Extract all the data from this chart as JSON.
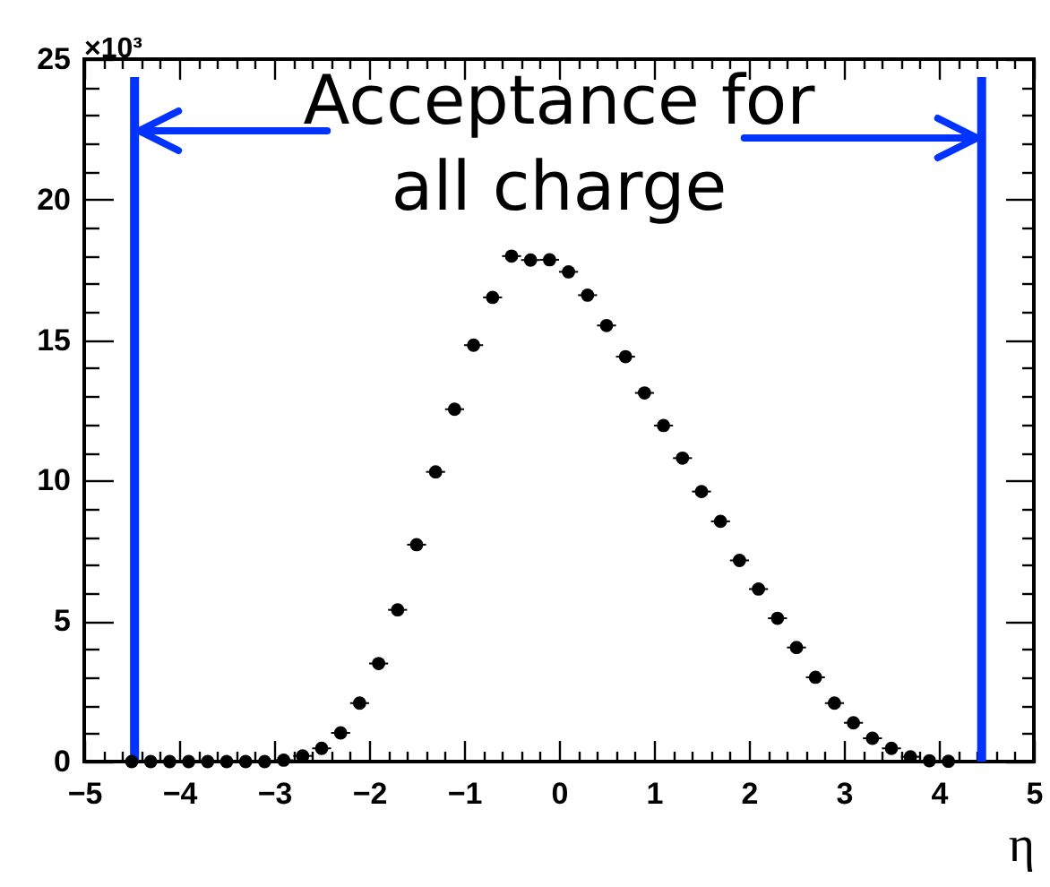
{
  "chart_data": {
    "type": "scatter",
    "marker": "circle",
    "xlabel": "η",
    "annotations": [
      "×10³",
      "Acceptance for\nall charge"
    ],
    "x": [
      -4.5,
      -4.3,
      -4.1,
      -3.9,
      -3.7,
      -3.5,
      -3.3,
      -3.1,
      -2.9,
      -2.7,
      -2.5,
      -2.3,
      -2.1,
      -1.9,
      -1.7,
      -1.5,
      -1.3,
      -1.1,
      -0.9,
      -0.7,
      -0.5,
      -0.3,
      -0.1,
      0.1,
      0.3,
      0.5,
      0.7,
      0.9,
      1.1,
      1.3,
      1.5,
      1.7,
      1.9,
      2.1,
      2.3,
      2.5,
      2.7,
      2.9,
      3.1,
      3.3,
      3.5,
      3.7,
      3.9,
      4.1
    ],
    "series": [
      {
        "color": "#000000",
        "values": [
          0,
          0,
          0,
          0,
          0,
          0,
          0,
          0,
          0.05,
          0.2,
          0.47,
          1.02,
          2.08,
          3.49,
          5.4,
          7.72,
          10.31,
          12.54,
          14.82,
          16.52,
          17.99,
          17.85,
          17.86,
          17.43,
          16.6,
          15.52,
          14.41,
          13.12,
          11.96,
          10.8,
          9.61,
          8.55,
          7.16,
          6.14,
          5.1,
          4.06,
          3.0,
          2.08,
          1.38,
          0.83,
          0.47,
          0.17,
          0.03,
          0.01
        ],
        "xerrors": [
          0.1,
          0.1,
          0.1,
          0.1,
          0.1,
          0.1,
          0.1,
          0.1,
          0.1,
          0.1,
          0.1,
          0.1,
          0.1,
          0.1,
          0.1,
          0.1,
          0.1,
          0.1,
          0.1,
          0.1,
          0.1,
          0.1,
          0.1,
          0.1,
          0.1,
          0.1,
          0.1,
          0.1,
          0.1,
          0.1,
          0.1,
          0.1,
          0.1,
          0.1,
          0.1,
          0.1,
          0.1,
          0.1,
          0.1,
          0.1,
          0.1,
          0.1,
          0.1,
          0.1
        ]
      }
    ],
    "xlim": [
      -5,
      5
    ],
    "ylim": [
      0,
      25
    ],
    "xticks": [
      -5,
      {
        "value": -4.8,
        "label": null
      },
      {
        "value": -4.6,
        "label": null
      },
      {
        "value": -4.4,
        "label": null
      },
      {
        "value": -4.2,
        "label": null
      },
      -4,
      {
        "value": -3.8,
        "label": null
      },
      {
        "value": -3.6,
        "label": null
      },
      {
        "value": -3.4,
        "label": null
      },
      {
        "value": -3.2,
        "label": null
      },
      -3,
      {
        "value": -2.8,
        "label": null
      },
      {
        "value": -2.6,
        "label": null
      },
      {
        "value": -2.4,
        "label": null
      },
      {
        "value": -2.2,
        "label": null
      },
      -2,
      {
        "value": -1.8,
        "label": null
      },
      {
        "value": -1.6,
        "label": null
      },
      {
        "value": -1.4,
        "label": null
      },
      {
        "value": -1.2,
        "label": null
      },
      -1,
      {
        "value": -0.8,
        "label": null
      },
      {
        "value": -0.6,
        "label": null
      },
      {
        "value": -0.4,
        "label": null
      },
      {
        "value": -0.2,
        "label": null
      },
      0,
      {
        "value": 0.2,
        "label": null
      },
      {
        "value": 0.4,
        "label": null
      },
      {
        "value": 0.6,
        "label": null
      },
      {
        "value": 0.8,
        "label": null
      },
      1,
      {
        "value": 1.2,
        "label": null
      },
      {
        "value": 1.4,
        "label": null
      },
      {
        "value": 1.6,
        "label": null
      },
      {
        "value": 1.8,
        "label": null
      },
      2,
      {
        "value": 2.2,
        "label": null
      },
      {
        "value": 2.4,
        "label": null
      },
      {
        "value": 2.6,
        "label": null
      },
      {
        "value": 2.8,
        "label": null
      },
      3,
      {
        "value": 3.2,
        "label": null
      },
      {
        "value": 3.4,
        "label": null
      },
      {
        "value": 3.6,
        "label": null
      },
      {
        "value": 3.8,
        "label": null
      },
      4,
      {
        "value": 4.2,
        "label": null
      },
      {
        "value": 4.4,
        "label": null
      },
      {
        "value": 4.6,
        "label": null
      },
      {
        "value": 4.8,
        "label": null
      },
      5
    ],
    "yticks": [
      0,
      {
        "value": 1,
        "label": null
      },
      {
        "value": 2,
        "label": null
      },
      {
        "value": 3,
        "label": null
      },
      {
        "value": 4,
        "label": null
      },
      5,
      {
        "value": 6,
        "label": null
      },
      {
        "value": 7,
        "label": null
      },
      {
        "value": 8,
        "label": null
      },
      {
        "value": 9,
        "label": null
      },
      10,
      {
        "value": 11,
        "label": null
      },
      {
        "value": 12,
        "label": null
      },
      {
        "value": 13,
        "label": null
      },
      {
        "value": 14,
        "label": null
      },
      15,
      {
        "value": 16,
        "label": null
      },
      {
        "value": 17,
        "label": null
      },
      {
        "value": 18,
        "label": null
      },
      {
        "value": 19,
        "label": null
      },
      20,
      {
        "value": 21,
        "label": null
      },
      {
        "value": 22,
        "label": null
      },
      {
        "value": 23,
        "label": null
      },
      {
        "value": 24,
        "label": null
      },
      25
    ],
    "ref_lines": [
      {
        "axis": "x",
        "value": -4.47,
        "color": "#0033ff"
      },
      {
        "axis": "x",
        "value": 4.45,
        "color": "#0033ff"
      }
    ]
  }
}
